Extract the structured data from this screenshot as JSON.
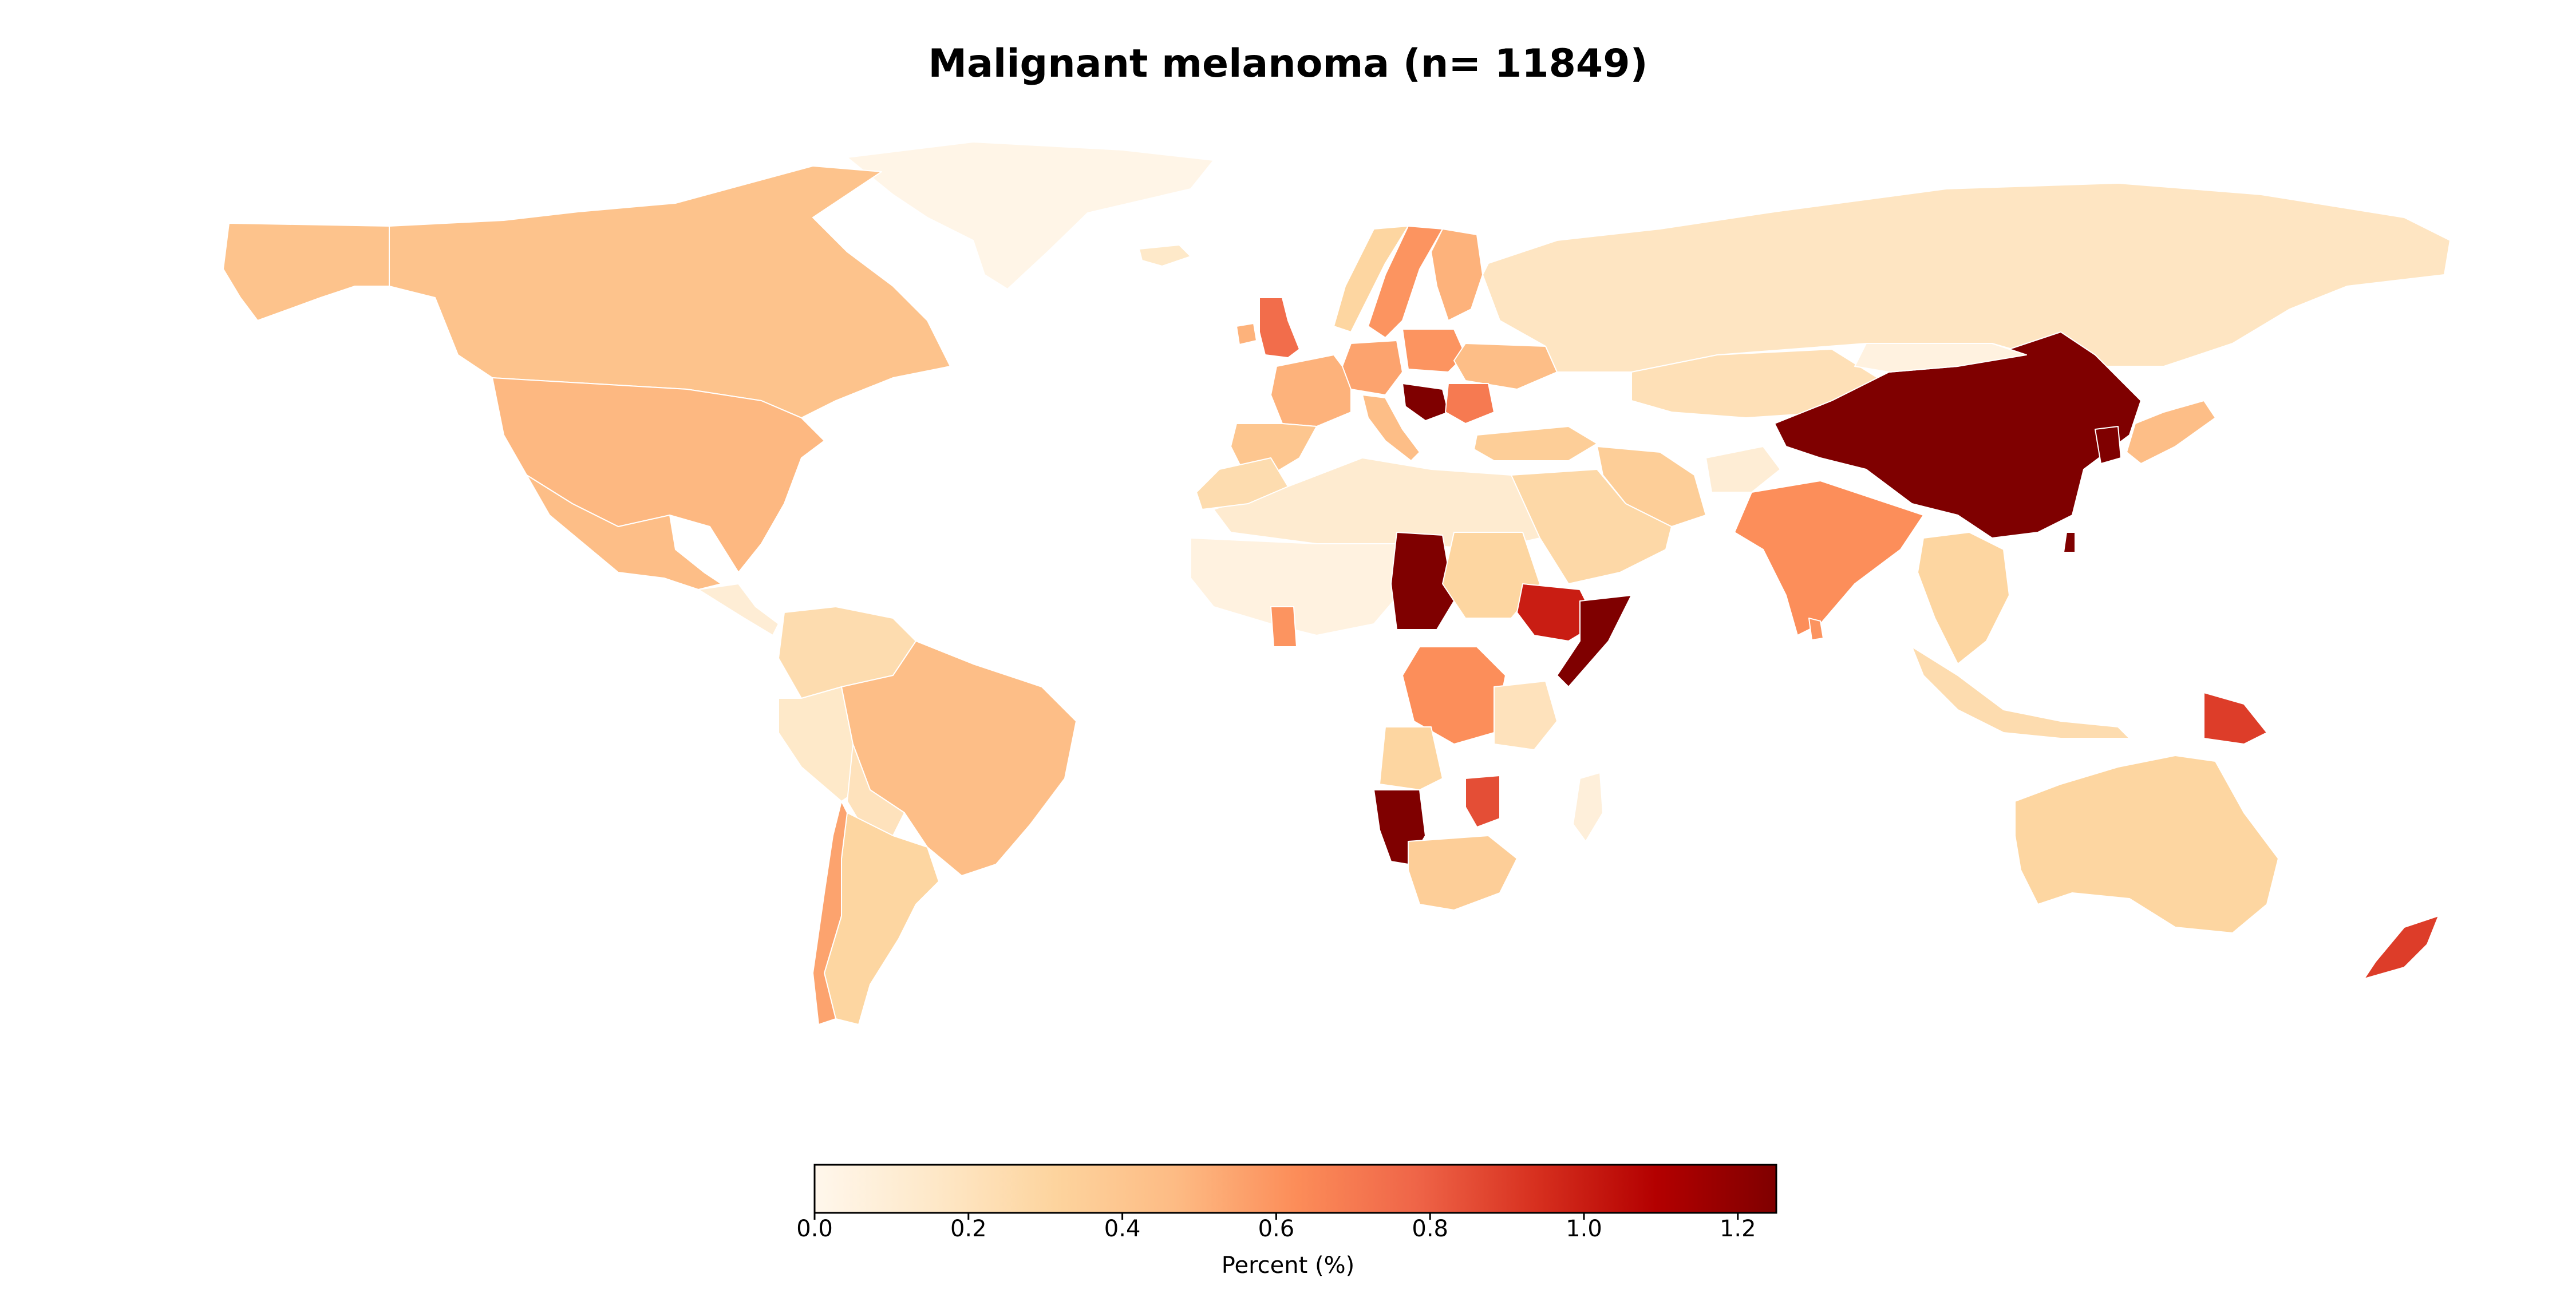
{
  "title": "Malignant melanoma (n= 11849)",
  "colorbar": {
    "label": "Percent (%)",
    "min": 0.0,
    "max": 1.25,
    "colormap": "OrRd",
    "stops": [
      "#fff7ec",
      "#fee8c8",
      "#fdd49e",
      "#fdbb84",
      "#fc8d59",
      "#ef6548",
      "#d7301f",
      "#b30000",
      "#7f0000"
    ],
    "ticks": [
      "0.0",
      "0.2",
      "0.4",
      "0.6",
      "0.8",
      "1.0",
      "1.2"
    ]
  },
  "regions": [
    {
      "name": "Greenland",
      "value": 0.02
    },
    {
      "name": "Canada",
      "value": 0.42
    },
    {
      "name": "Alaska",
      "value": 0.42
    },
    {
      "name": "United States",
      "value": 0.48
    },
    {
      "name": "Mexico",
      "value": 0.45
    },
    {
      "name": "Central America",
      "value": 0.1
    },
    {
      "name": "Colombia",
      "value": 0.25
    },
    {
      "name": "Peru",
      "value": 0.15
    },
    {
      "name": "Brazil",
      "value": 0.45
    },
    {
      "name": "Bolivia",
      "value": 0.2
    },
    {
      "name": "Argentina",
      "value": 0.3
    },
    {
      "name": "Chile",
      "value": 0.55
    },
    {
      "name": "Iceland",
      "value": 0.15
    },
    {
      "name": "United Kingdom",
      "value": 0.75
    },
    {
      "name": "Ireland",
      "value": 0.5
    },
    {
      "name": "France",
      "value": 0.5
    },
    {
      "name": "Iberia",
      "value": 0.4
    },
    {
      "name": "Norway",
      "value": 0.3
    },
    {
      "name": "Sweden",
      "value": 0.6
    },
    {
      "name": "Finland",
      "value": 0.5
    },
    {
      "name": "Germany",
      "value": 0.55
    },
    {
      "name": "Poland",
      "value": 0.6
    },
    {
      "name": "Italy",
      "value": 0.45
    },
    {
      "name": "Balkans",
      "value": 1.25
    },
    {
      "name": "Ukraine",
      "value": 0.45
    },
    {
      "name": "Romania",
      "value": 0.7
    },
    {
      "name": "Russia",
      "value": 0.18
    },
    {
      "name": "Turkey",
      "value": 0.35
    },
    {
      "name": "Kazakhstan",
      "value": 0.22
    },
    {
      "name": "Iran",
      "value": 0.35
    },
    {
      "name": "Arabian Peninsula",
      "value": 0.28
    },
    {
      "name": "Afghanistan",
      "value": 0.1
    },
    {
      "name": "India",
      "value": 0.62
    },
    {
      "name": "Sri Lanka",
      "value": 0.6
    },
    {
      "name": "China",
      "value": 1.25
    },
    {
      "name": "Mongolia",
      "value": 0.05
    },
    {
      "name": "Korea",
      "value": 1.25
    },
    {
      "name": "Japan",
      "value": 0.45
    },
    {
      "name": "Taiwan",
      "value": 1.25
    },
    {
      "name": "Southeast Asia",
      "value": 0.3
    },
    {
      "name": "Indonesia",
      "value": 0.25
    },
    {
      "name": "Papua New Guinea",
      "value": 0.9
    },
    {
      "name": "Australia",
      "value": 0.3
    },
    {
      "name": "New Zealand",
      "value": 0.9
    },
    {
      "name": "North Africa",
      "value": 0.12
    },
    {
      "name": "Morocco",
      "value": 0.25
    },
    {
      "name": "West Africa",
      "value": 0.05
    },
    {
      "name": "Ghana",
      "value": 0.6
    },
    {
      "name": "Chad",
      "value": 1.25
    },
    {
      "name": "Sudan",
      "value": 0.3
    },
    {
      "name": "Ethiopia",
      "value": 1.0
    },
    {
      "name": "Somalia",
      "value": 1.25
    },
    {
      "name": "DR Congo",
      "value": 0.62
    },
    {
      "name": "Tanzania",
      "value": 0.2
    },
    {
      "name": "Angola",
      "value": 0.3
    },
    {
      "name": "Namibia",
      "value": 1.25
    },
    {
      "name": "Mozambique",
      "value": 0.85
    },
    {
      "name": "South Africa",
      "value": 0.35
    },
    {
      "name": "Madagascar",
      "value": 0.08
    }
  ]
}
